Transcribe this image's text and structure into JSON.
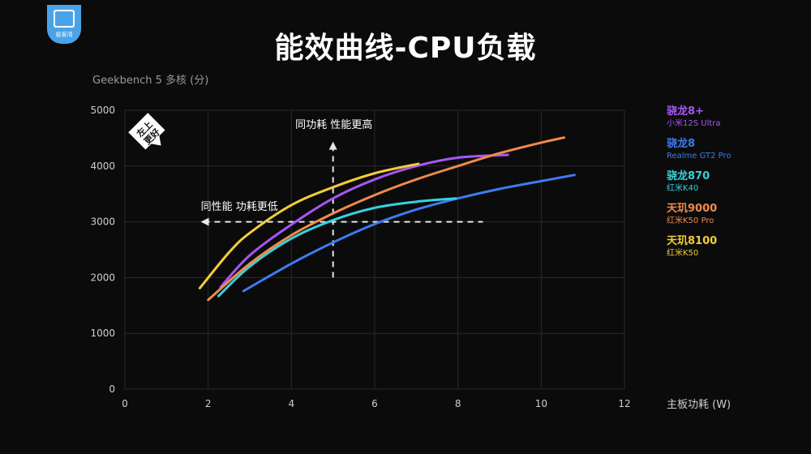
{
  "badge": {
    "text": "极客湾",
    "icon": "monitor-logo-icon"
  },
  "page_title": "能效曲线-CPU负载",
  "chart_data": {
    "type": "line",
    "title": "能效曲线-CPU负载",
    "ylabel": "Geekbench 5 多核 (分)",
    "xlabel": "主板功耗 (W)",
    "xlim": [
      0,
      12
    ],
    "ylim": [
      0,
      5000
    ],
    "xticks": [
      0,
      2,
      4,
      6,
      8,
      10,
      12
    ],
    "yticks": [
      0,
      1000,
      2000,
      3000,
      4000,
      5000
    ],
    "grid": true,
    "legend_position": "right",
    "series": [
      {
        "name": "骁龙8+",
        "device": "小米12S Ultra",
        "color": "#a855f7",
        "points": [
          [
            2.3,
            1830
          ],
          [
            3,
            2400
          ],
          [
            4,
            2950
          ],
          [
            5,
            3420
          ],
          [
            6,
            3760
          ],
          [
            7,
            4000
          ],
          [
            8,
            4150
          ],
          [
            9.2,
            4200
          ]
        ]
      },
      {
        "name": "骁龙8",
        "device": "Realme GT2 Pro",
        "color": "#3d7bf0",
        "points": [
          [
            2.85,
            1760
          ],
          [
            4,
            2250
          ],
          [
            5,
            2630
          ],
          [
            6,
            2960
          ],
          [
            7,
            3220
          ],
          [
            8,
            3420
          ],
          [
            9,
            3590
          ],
          [
            10,
            3730
          ],
          [
            10.8,
            3840
          ]
        ]
      },
      {
        "name": "骁龙870",
        "device": "红米K40",
        "color": "#38d0dc",
        "points": [
          [
            2.25,
            1670
          ],
          [
            3,
            2200
          ],
          [
            4,
            2700
          ],
          [
            5,
            3030
          ],
          [
            6,
            3250
          ],
          [
            7,
            3360
          ],
          [
            7.95,
            3420
          ]
        ]
      },
      {
        "name": "天玑9000",
        "device": "红米K50 Pro",
        "color": "#f08a4b",
        "points": [
          [
            2,
            1600
          ],
          [
            3,
            2250
          ],
          [
            4,
            2760
          ],
          [
            5,
            3150
          ],
          [
            6,
            3480
          ],
          [
            7,
            3760
          ],
          [
            8,
            4000
          ],
          [
            9,
            4230
          ],
          [
            10,
            4420
          ],
          [
            10.55,
            4510
          ]
        ]
      },
      {
        "name": "天玑8100",
        "device": "红米K50",
        "color": "#f2cc3a",
        "points": [
          [
            1.8,
            1810
          ],
          [
            2.5,
            2450
          ],
          [
            3,
            2800
          ],
          [
            4,
            3300
          ],
          [
            5,
            3620
          ],
          [
            6,
            3870
          ],
          [
            7.05,
            4040
          ]
        ]
      }
    ],
    "annotations": {
      "corner_badge": "左上更好",
      "vertical_arrow_label": "同功耗 性能更高",
      "horizontal_arrow_label": "同性能 功耗更低",
      "crosshair_center": [
        5,
        3000
      ]
    }
  }
}
